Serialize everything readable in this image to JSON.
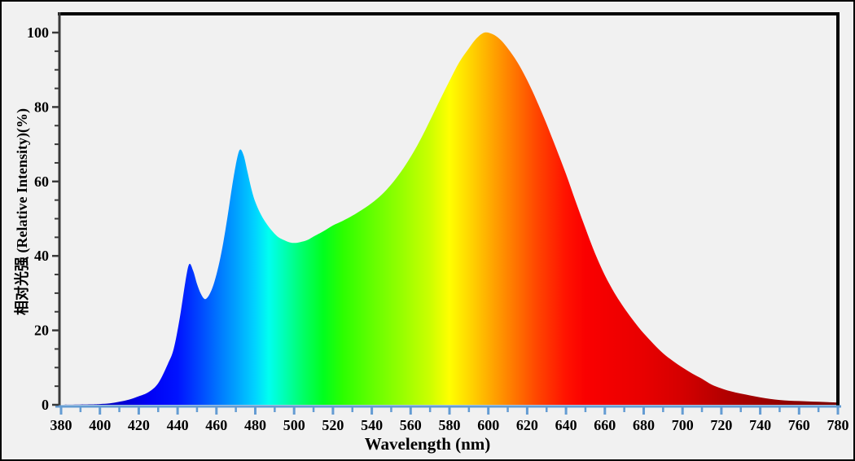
{
  "figure": {
    "background_color": "#F1F1F1",
    "outer_border_color": "#000000"
  },
  "labels": {
    "x_axis_title": "Wavelength (nm)",
    "y_axis_title": "相对光强 (Relative Intensity)(%)"
  },
  "chart_data": {
    "type": "area",
    "title": "",
    "xlabel": "Wavelength (nm)",
    "ylabel": "相对光强 (Relative Intensity)(%)",
    "xlim": [
      380,
      780
    ],
    "ylim": [
      0,
      105
    ],
    "grid": "off",
    "legend": "none",
    "x_major_ticks": [
      380,
      400,
      420,
      440,
      460,
      480,
      500,
      520,
      540,
      560,
      580,
      600,
      620,
      640,
      660,
      680,
      700,
      720,
      740,
      760,
      780
    ],
    "x_minor_step": 10,
    "y_major_ticks": [
      0,
      20,
      40,
      60,
      80,
      100
    ],
    "y_minor_step": 5,
    "axis_colors": {
      "x_axis": "#649CD3",
      "y_axis": "#3A3A3A",
      "frame": "#000000"
    },
    "annotations": {
      "peak_1": {
        "wavelength": 446,
        "intensity": 37.8
      },
      "valley_1": {
        "wavelength": 454,
        "intensity": 28.4
      },
      "peak_2": {
        "wavelength": 472,
        "intensity": 68.5
      },
      "valley_2": {
        "wavelength": 500,
        "intensity": 43.5
      },
      "main_peak": {
        "wavelength": 598,
        "intensity": 100
      }
    },
    "series": [
      {
        "name": "relative-spectral-power",
        "fill": "wavelength-spectrum-gradient",
        "points": [
          [
            380,
            0
          ],
          [
            395,
            0.1
          ],
          [
            400,
            0.2
          ],
          [
            405,
            0.4
          ],
          [
            410,
            0.8
          ],
          [
            415,
            1.4
          ],
          [
            420,
            2.3
          ],
          [
            425,
            3.4
          ],
          [
            430,
            5.8
          ],
          [
            435,
            11
          ],
          [
            438,
            15
          ],
          [
            441,
            23
          ],
          [
            444,
            33
          ],
          [
            446,
            37.8
          ],
          [
            448,
            36
          ],
          [
            450,
            32.5
          ],
          [
            452,
            29.8
          ],
          [
            454,
            28.4
          ],
          [
            456,
            29.3
          ],
          [
            458,
            31.5
          ],
          [
            460,
            35
          ],
          [
            462,
            39.5
          ],
          [
            464,
            45
          ],
          [
            466,
            51.5
          ],
          [
            468,
            58.5
          ],
          [
            470,
            64.5
          ],
          [
            472,
            68.5
          ],
          [
            474,
            67
          ],
          [
            476,
            62.5
          ],
          [
            478,
            58
          ],
          [
            480,
            54.5
          ],
          [
            483,
            51
          ],
          [
            486,
            48.5
          ],
          [
            489,
            46.5
          ],
          [
            492,
            45
          ],
          [
            495,
            44.2
          ],
          [
            498,
            43.6
          ],
          [
            501,
            43.5
          ],
          [
            504,
            43.8
          ],
          [
            507,
            44.3
          ],
          [
            510,
            45.2
          ],
          [
            515,
            46.6
          ],
          [
            520,
            48.2
          ],
          [
            525,
            49.4
          ],
          [
            530,
            50.8
          ],
          [
            535,
            52.4
          ],
          [
            540,
            54.2
          ],
          [
            545,
            56.4
          ],
          [
            550,
            59.2
          ],
          [
            555,
            62.6
          ],
          [
            560,
            66.6
          ],
          [
            565,
            71.2
          ],
          [
            570,
            76.4
          ],
          [
            575,
            81.8
          ],
          [
            580,
            87
          ],
          [
            585,
            92
          ],
          [
            590,
            95.8
          ],
          [
            594,
            98.5
          ],
          [
            598,
            100
          ],
          [
            602,
            99.6
          ],
          [
            606,
            98.2
          ],
          [
            610,
            95.8
          ],
          [
            615,
            92
          ],
          [
            620,
            87.2
          ],
          [
            625,
            81.6
          ],
          [
            630,
            75.4
          ],
          [
            635,
            68.8
          ],
          [
            640,
            62
          ],
          [
            645,
            54.6
          ],
          [
            650,
            47.4
          ],
          [
            655,
            40.6
          ],
          [
            660,
            34.8
          ],
          [
            665,
            30
          ],
          [
            670,
            26
          ],
          [
            675,
            22.4
          ],
          [
            680,
            19.2
          ],
          [
            685,
            16.4
          ],
          [
            690,
            13.8
          ],
          [
            695,
            11.8
          ],
          [
            700,
            10
          ],
          [
            705,
            8.4
          ],
          [
            710,
            7
          ],
          [
            715,
            5.4
          ],
          [
            720,
            4.4
          ],
          [
            725,
            3.6
          ],
          [
            730,
            3
          ],
          [
            735,
            2.5
          ],
          [
            740,
            2
          ],
          [
            745,
            1.6
          ],
          [
            750,
            1.3
          ],
          [
            755,
            1.1
          ],
          [
            760,
            1
          ],
          [
            765,
            0.9
          ],
          [
            770,
            0.8
          ],
          [
            775,
            0.7
          ],
          [
            780,
            0.6
          ]
        ]
      }
    ],
    "spectrum_gradient": [
      [
        380,
        "#0000A0"
      ],
      [
        410,
        "#0000CD"
      ],
      [
        425,
        "#0000F5"
      ],
      [
        440,
        "#0013FF"
      ],
      [
        450,
        "#0040FF"
      ],
      [
        460,
        "#0070FF"
      ],
      [
        470,
        "#00A0FF"
      ],
      [
        480,
        "#00D4FF"
      ],
      [
        487,
        "#00FFF0"
      ],
      [
        495,
        "#00FFB4"
      ],
      [
        505,
        "#00FF64"
      ],
      [
        515,
        "#00FF1E"
      ],
      [
        525,
        "#2BFF00"
      ],
      [
        540,
        "#62FF00"
      ],
      [
        555,
        "#95FF00"
      ],
      [
        570,
        "#CCFF00"
      ],
      [
        580,
        "#FFFF00"
      ],
      [
        590,
        "#FFD800"
      ],
      [
        600,
        "#FFAE00"
      ],
      [
        612,
        "#FF7C00"
      ],
      [
        625,
        "#FF4600"
      ],
      [
        640,
        "#FF1200"
      ],
      [
        650,
        "#FA0000"
      ],
      [
        680,
        "#E80000"
      ],
      [
        700,
        "#D40000"
      ],
      [
        725,
        "#AE0000"
      ],
      [
        750,
        "#920000"
      ],
      [
        780,
        "#7A0000"
      ]
    ]
  }
}
